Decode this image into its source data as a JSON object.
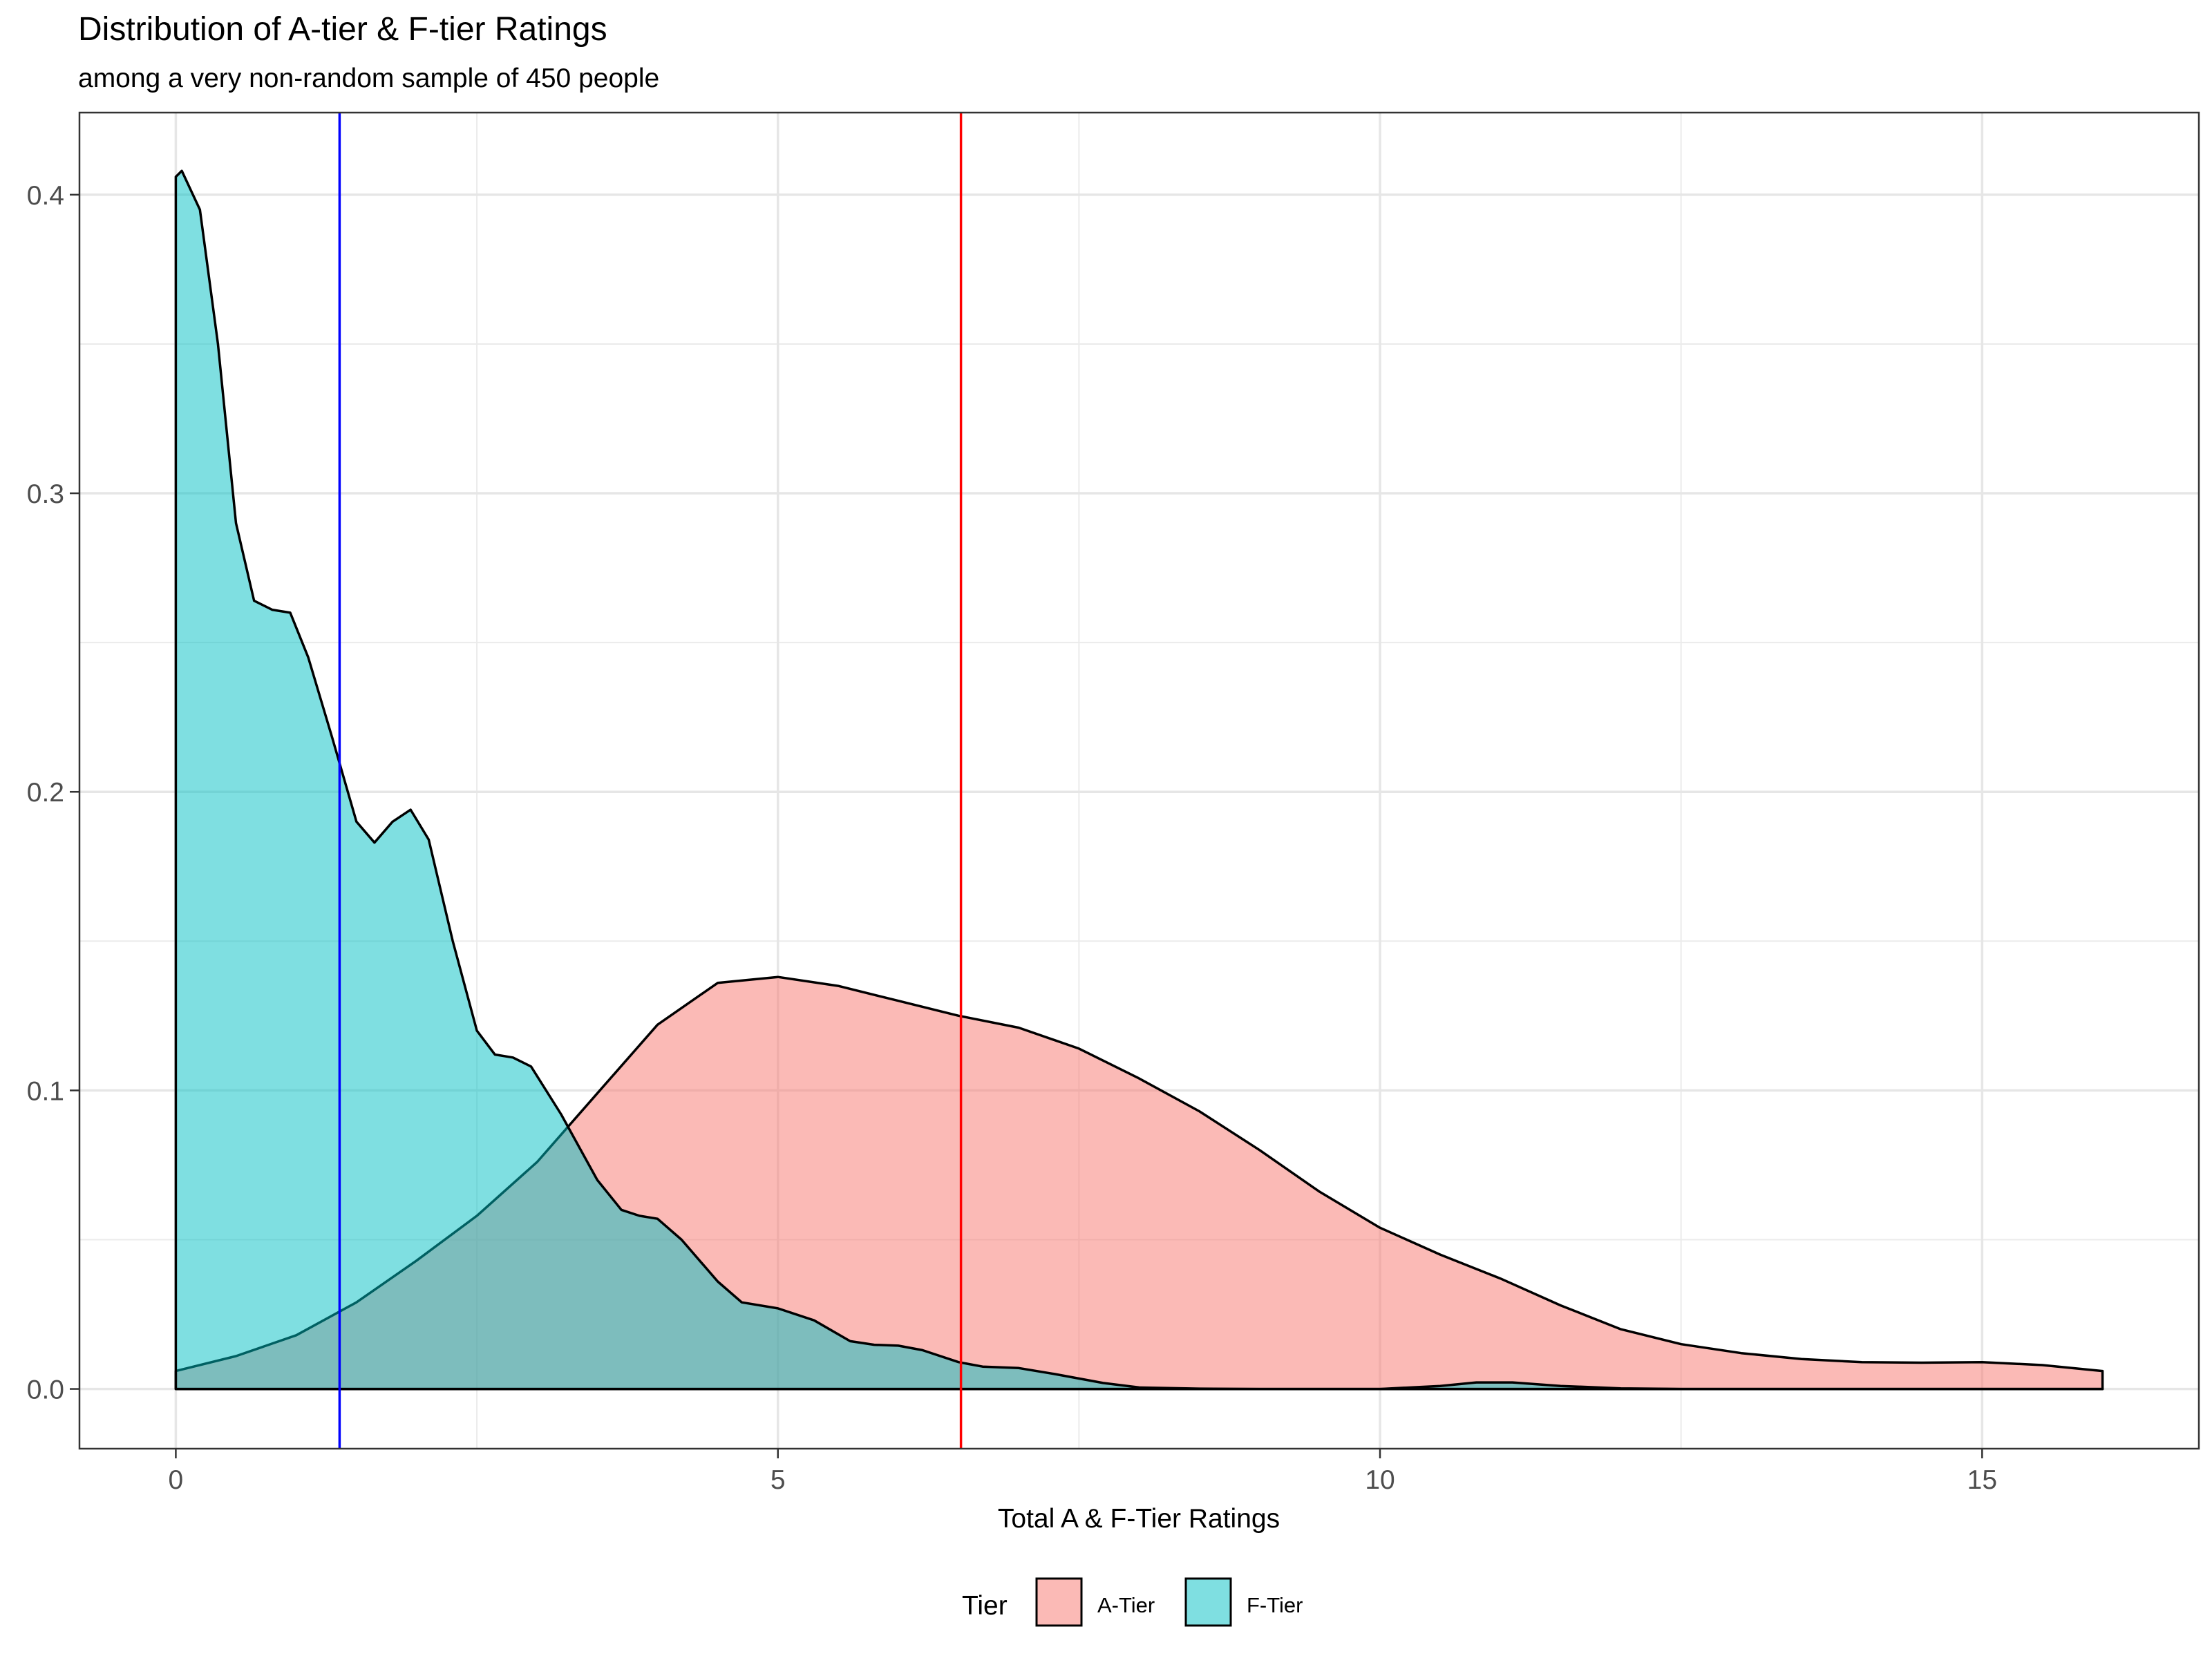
{
  "chart_data": {
    "type": "area",
    "title": "Distribution of A-tier & F-tier Ratings",
    "subtitle": "among a very non-random sample of 450 people",
    "xlabel": "Total A & F-Tier Ratings",
    "ylabel": "",
    "xlim": [
      -0.8,
      16.8
    ],
    "ylim": [
      -0.02,
      0.4275
    ],
    "x_ticks": [
      "0",
      "5",
      "10",
      "15"
    ],
    "y_ticks": [
      "0.0",
      "0.1",
      "0.2",
      "0.3",
      "0.4"
    ],
    "grid": true,
    "legend_position": "bottom",
    "legend_title": "Tier",
    "series": [
      {
        "name": "A-Tier",
        "color": "#F8766D",
        "points": [
          [
            0,
            0.006
          ],
          [
            0.5,
            0.011
          ],
          [
            1,
            0.018
          ],
          [
            1.5,
            0.029
          ],
          [
            2,
            0.043
          ],
          [
            2.5,
            0.058
          ],
          [
            3,
            0.076
          ],
          [
            3.5,
            0.099
          ],
          [
            4,
            0.122
          ],
          [
            4.5,
            0.136
          ],
          [
            5,
            0.138
          ],
          [
            5.5,
            0.135
          ],
          [
            6,
            0.13
          ],
          [
            6.5,
            0.125
          ],
          [
            7,
            0.121
          ],
          [
            7.5,
            0.114
          ],
          [
            8,
            0.104
          ],
          [
            8.5,
            0.093
          ],
          [
            9,
            0.08
          ],
          [
            9.5,
            0.066
          ],
          [
            10,
            0.054
          ],
          [
            10.5,
            0.045
          ],
          [
            11,
            0.037
          ],
          [
            11.5,
            0.028
          ],
          [
            12,
            0.02
          ],
          [
            12.5,
            0.015
          ],
          [
            13,
            0.012
          ],
          [
            13.5,
            0.01
          ],
          [
            14,
            0.009
          ],
          [
            14.5,
            0.0088
          ],
          [
            15,
            0.009
          ],
          [
            15.5,
            0.008
          ],
          [
            16,
            0.006
          ]
        ]
      },
      {
        "name": "F-Tier",
        "color": "#00BFC4",
        "points": [
          [
            0,
            0.406
          ],
          [
            0.05,
            0.408
          ],
          [
            0.2,
            0.395
          ],
          [
            0.35,
            0.35
          ],
          [
            0.5,
            0.29
          ],
          [
            0.65,
            0.264
          ],
          [
            0.8,
            0.261
          ],
          [
            0.95,
            0.26
          ],
          [
            1.1,
            0.245
          ],
          [
            1.3,
            0.218
          ],
          [
            1.5,
            0.19
          ],
          [
            1.65,
            0.183
          ],
          [
            1.8,
            0.19
          ],
          [
            1.95,
            0.194
          ],
          [
            2.1,
            0.184
          ],
          [
            2.3,
            0.15
          ],
          [
            2.5,
            0.12
          ],
          [
            2.65,
            0.112
          ],
          [
            2.8,
            0.111
          ],
          [
            2.95,
            0.108
          ],
          [
            3.2,
            0.092
          ],
          [
            3.5,
            0.07
          ],
          [
            3.7,
            0.06
          ],
          [
            3.85,
            0.058
          ],
          [
            4,
            0.057
          ],
          [
            4.2,
            0.05
          ],
          [
            4.5,
            0.036
          ],
          [
            4.7,
            0.029
          ],
          [
            5,
            0.027
          ],
          [
            5.3,
            0.023
          ],
          [
            5.6,
            0.016
          ],
          [
            5.8,
            0.0148
          ],
          [
            6,
            0.0145
          ],
          [
            6.2,
            0.013
          ],
          [
            6.5,
            0.009
          ],
          [
            6.7,
            0.0075
          ],
          [
            7,
            0.007
          ],
          [
            7.3,
            0.005
          ],
          [
            7.7,
            0.002
          ],
          [
            8,
            0.0005
          ],
          [
            8.5,
            0.0001
          ],
          [
            9,
            0
          ],
          [
            10,
            0
          ],
          [
            10.5,
            0.001
          ],
          [
            10.8,
            0.0022
          ],
          [
            11.1,
            0.0022
          ],
          [
            11.5,
            0.001
          ],
          [
            12,
            0.0002
          ],
          [
            12.5,
            0
          ],
          [
            16,
            0
          ]
        ]
      }
    ],
    "vlines": [
      {
        "name": "F-Tier mean",
        "x": 1.36,
        "color": "#0000FF"
      },
      {
        "name": "A-Tier mean",
        "x": 6.52,
        "color": "#FF0000"
      }
    ]
  }
}
